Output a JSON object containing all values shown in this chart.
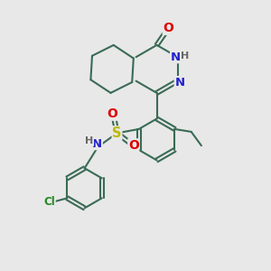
{
  "bg_color": "#e8e8e8",
  "bond_color": "#3a6b55",
  "bond_lw": 1.5,
  "atom_colors": {
    "O": "#dd0000",
    "N": "#2222cc",
    "S": "#bbbb00",
    "Cl": "#228822",
    "H": "#666666"
  },
  "font_size": 8.5
}
